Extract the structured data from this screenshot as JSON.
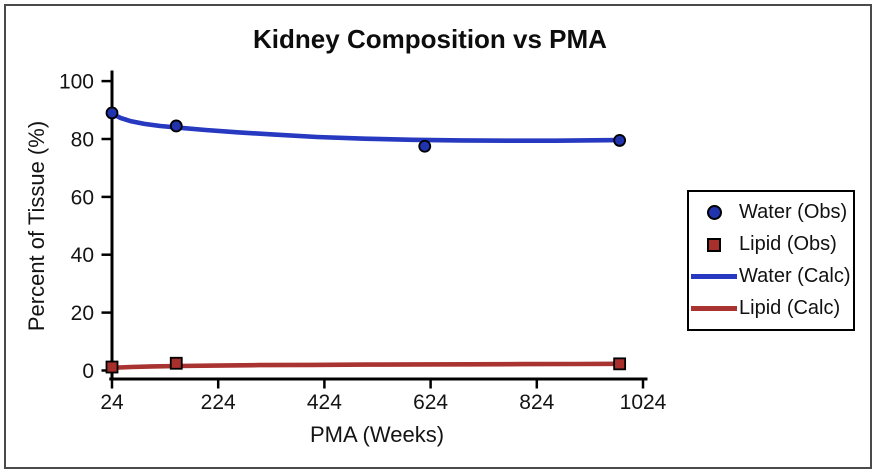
{
  "title": "Kidney Composition vs PMA",
  "axes": {
    "x": {
      "label": "PMA (Weeks)",
      "tick_labels": [
        "24",
        "224",
        "424",
        "624",
        "824",
        "1024"
      ],
      "min": 24,
      "max": 1024
    },
    "y": {
      "label": "Percent of Tissue (%)",
      "tick_labels": [
        "0",
        "20",
        "40",
        "60",
        "80",
        "100"
      ],
      "min": 0,
      "max": 100
    }
  },
  "legend": {
    "items": [
      {
        "label": "Water (Obs)",
        "marker": "circle",
        "color": "#2134ae"
      },
      {
        "label": "Lipid (Obs)",
        "marker": "square",
        "color": "#a8302c"
      },
      {
        "label": "Water (Calc)",
        "marker": "line",
        "color": "#2639c0"
      },
      {
        "label": "Lipid (Calc)",
        "marker": "line",
        "color": "#a93330"
      }
    ]
  },
  "colors": {
    "water_blue": "#2639c0",
    "water_marker": "#2134ae",
    "lipid_red": "#a93330",
    "lipid_marker": "#a8302c",
    "frame_border": "#4a4a4a",
    "axis_black": "#000000"
  },
  "chart_data": {
    "type": "scatter",
    "title": "Kidney Composition vs PMA",
    "xlabel": "PMA (Weeks)",
    "ylabel": "Percent of Tissue (%)",
    "xlim": [
      24,
      1024
    ],
    "ylim": [
      0,
      100
    ],
    "xticks": [
      24,
      224,
      424,
      624,
      824,
      1024
    ],
    "yticks": [
      0,
      20,
      40,
      60,
      80,
      100
    ],
    "grid": false,
    "legend_position": "right-outside",
    "series": [
      {
        "name": "Water (Obs)",
        "type": "scatter",
        "marker": "circle",
        "color": "#2134ae",
        "points": [
          [
            24,
            89
          ],
          [
            145,
            84.5
          ],
          [
            613,
            77.5
          ],
          [
            980,
            79.5
          ]
        ]
      },
      {
        "name": "Lipid (Obs)",
        "type": "scatter",
        "marker": "square",
        "color": "#a8302c",
        "points": [
          [
            24,
            1.2
          ],
          [
            145,
            2.5
          ],
          [
            980,
            2.3
          ]
        ]
      },
      {
        "name": "Water (Calc)",
        "type": "line",
        "color": "#2639c0",
        "points": [
          [
            24,
            88.8
          ],
          [
            40,
            87.3
          ],
          [
            60,
            86.1
          ],
          [
            85,
            85.2
          ],
          [
            115,
            84.5
          ],
          [
            150,
            83.9
          ],
          [
            200,
            83.1
          ],
          [
            260,
            82.3
          ],
          [
            330,
            81.5
          ],
          [
            410,
            80.7
          ],
          [
            500,
            80.1
          ],
          [
            590,
            79.7
          ],
          [
            680,
            79.5
          ],
          [
            770,
            79.4
          ],
          [
            860,
            79.4
          ],
          [
            980,
            79.6
          ]
        ]
      },
      {
        "name": "Lipid (Calc)",
        "type": "line",
        "color": "#a93330",
        "points": [
          [
            24,
            0.95
          ],
          [
            60,
            1.2
          ],
          [
            100,
            1.4
          ],
          [
            150,
            1.55
          ],
          [
            220,
            1.7
          ],
          [
            300,
            1.85
          ],
          [
            400,
            1.95
          ],
          [
            500,
            2.05
          ],
          [
            600,
            2.1
          ],
          [
            700,
            2.15
          ],
          [
            800,
            2.2
          ],
          [
            900,
            2.25
          ],
          [
            980,
            2.3
          ]
        ]
      }
    ]
  }
}
